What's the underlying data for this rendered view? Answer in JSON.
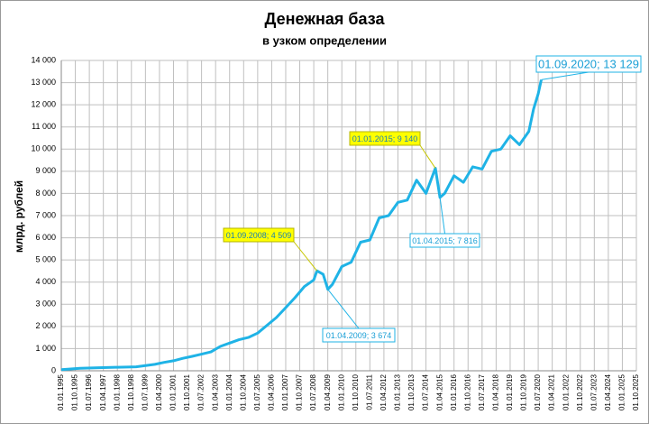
{
  "chart_data": {
    "type": "line",
    "title": "Денежная база",
    "subtitle": "в узком определении",
    "ylabel": "млрд. рублей",
    "x": [
      "01.01.1995",
      "01.07.1995",
      "01.01.1996",
      "01.01.1997",
      "01.01.1998",
      "01.01.1999",
      "01.07.1999",
      "01.01.2000",
      "01.07.2000",
      "01.01.2001",
      "01.07.2001",
      "01.01.2002",
      "01.07.2002",
      "01.01.2003",
      "01.07.2003",
      "01.01.2004",
      "01.07.2004",
      "01.01.2005",
      "01.07.2005",
      "01.01.2006",
      "01.07.2006",
      "01.01.2007",
      "01.07.2007",
      "01.01.2008",
      "01.07.2008",
      "01.09.2008",
      "01.01.2009",
      "01.04.2009",
      "01.07.2009",
      "01.01.2010",
      "01.07.2010",
      "01.01.2011",
      "01.07.2011",
      "01.01.2012",
      "01.07.2012",
      "01.01.2013",
      "01.07.2013",
      "01.01.2014",
      "01.07.2014",
      "01.01.2015",
      "01.04.2015",
      "01.07.2015",
      "01.01.2016",
      "01.07.2016",
      "01.01.2017",
      "01.07.2017",
      "01.01.2018",
      "01.07.2018",
      "01.01.2019",
      "01.07.2019",
      "01.01.2020",
      "01.04.2020",
      "01.07.2020",
      "01.09.2020"
    ],
    "series": [
      {
        "color": "#1fb3e6",
        "values": [
          50,
          80,
          110,
          140,
          160,
          180,
          230,
          290,
          380,
          450,
          560,
          650,
          750,
          850,
          1100,
          1250,
          1400,
          1500,
          1700,
          2050,
          2400,
          2850,
          3300,
          3800,
          4100,
          4509,
          4350,
          3674,
          3900,
          4700,
          4900,
          5800,
          5900,
          6900,
          7000,
          7600,
          7700,
          8600,
          8000,
          9140,
          7816,
          8000,
          8800,
          8500,
          9200,
          9100,
          9900,
          10000,
          10600,
          10200,
          10800,
          11800,
          12500,
          13129
        ]
      }
    ],
    "ylim": [
      0,
      14000
    ],
    "yticks": [
      0,
      {
        "value": 1000,
        "label": "1 000"
      },
      {
        "value": 2000,
        "label": "2 000"
      },
      {
        "value": 3000,
        "label": "3 000"
      },
      {
        "value": 4000,
        "label": "4 000"
      },
      {
        "value": 5000,
        "label": "5 000"
      },
      {
        "value": 6000,
        "label": "6 000"
      },
      {
        "value": 7000,
        "label": "7 000"
      },
      {
        "value": 8000,
        "label": "8 000"
      },
      {
        "value": 9000,
        "label": "9 000"
      },
      {
        "value": 10000,
        "label": "10 000"
      },
      {
        "value": 11000,
        "label": "11 000"
      },
      {
        "value": 12000,
        "label": "12 000"
      },
      {
        "value": 13000,
        "label": "13 000"
      },
      {
        "value": 14000,
        "label": "14 000"
      }
    ],
    "xlim": [
      "01.01.1995",
      "01.10.2025"
    ],
    "xticks": [
      "01.01.1995",
      "01.10.1995",
      "01.07.1996",
      "01.04.1997",
      "01.01.1998",
      "01.10.1998",
      "01.07.1999",
      "01.04.2000",
      "01.01.2001",
      "01.10.2001",
      "01.07.2002",
      "01.04.2003",
      "01.01.2004",
      "01.10.2004",
      "01.07.2005",
      "01.04.2006",
      "01.01.2007",
      "01.10.2007",
      "01.07.2008",
      "01.04.2009",
      "01.01.2010",
      "01.10.2010",
      "01.07.2011",
      "01.04.2012",
      "01.01.2013",
      "01.10.2013",
      "01.07.2014",
      "01.04.2015",
      "01.01.2016",
      "01.10.2016",
      "01.07.2017",
      "01.04.2018",
      "01.01.2019",
      "01.10.2019",
      "01.07.2020",
      "01.04.2021",
      "01.01.2022",
      "01.10.2022",
      "01.07.2023",
      "01.04.2024",
      "01.01.2025",
      "01.10.2025"
    ],
    "grid": true,
    "annotations": [
      {
        "text": "01.09.2008; 4 509",
        "x": "01.09.2008",
        "y": 4509,
        "highlight": true
      },
      {
        "text": "01.04.2009; 3 674",
        "x": "01.04.2009",
        "y": 3674,
        "highlight": false
      },
      {
        "text": "01.01.2015; 9 140",
        "x": "01.01.2015",
        "y": 9140,
        "highlight": true
      },
      {
        "text": "01.04.2015; 7 816",
        "x": "01.04.2015",
        "y": 7816,
        "highlight": false
      },
      {
        "text": "01.09.2020; 13 129",
        "x": "01.09.2020",
        "y": 13129,
        "highlight": false
      }
    ]
  }
}
